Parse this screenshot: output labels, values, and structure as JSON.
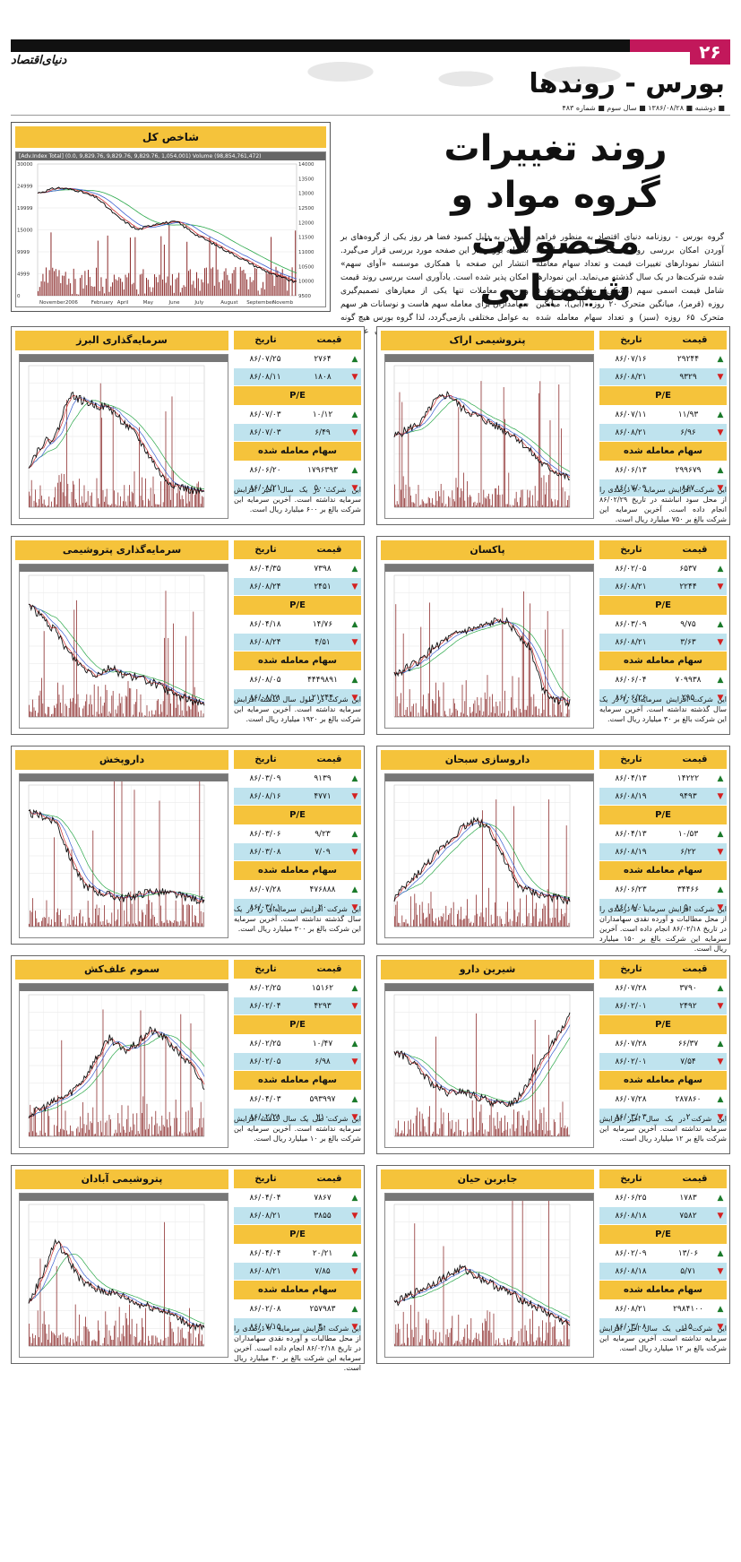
{
  "header": {
    "page_number": "۲۶",
    "logo": "دنیای‌اقتصاد",
    "section_title": "بورس - روندها",
    "dateline": "■ دوشنبه ■ ۱۳۸۶/۰۸/۲۸ ■ سال سوم ■ شماره ۴۸۳"
  },
  "article": {
    "headline_line1": "روند تغییرات",
    "headline_line2": "گروه مواد و محصولات شیمیایی",
    "intro_right": "گروه بورس - روزنامه دنیای اقتصاد به منظور فراهم آوردن امکان بررسی روند قیمت شرکت‌ها اقدام به انتشار نمودارهای تغییرات قیمت و تعداد سهام معامله شده شرکت‌ها در یک سال گذشته می‌نماید. این نمودارها شامل قیمت اسمی سهم (مشکی)، میانگین متحرک ۵ روزه (قرمز)، میانگین متحرک ۲۰ روزه (آبی)، میانگین متحرک ۶۵ روزه (سبز) و تعداد سهام معامله شده (قهوه‌ای) می‌باشد. سمت راست نمودار مقیاس قیمت و سمت چپ نمودار مقیاس تعداد سهام معامله شده می‌باشد.",
    "intro_left": "همچنین به دلیل کمبود فضا هر روز یکی از گروه‌های بر سامانه بورس در این صفحه مورد بررسی قرار می‌گیرد. انتشار این صفحه با همکاری موسسه «آوای سهم» امکان پذیر شده است. یادآوری است بررسی روند قیمت و حجم معاملات تنها یکی از معیارهای تصمیم‌گیری سهامداران برای معامله سهم هاست و نوسانات هر سهم به عوامل مختلفی بازمی‌گردد، لذا گروه بورس هیچ گونه مسوولیتی در برابر تصمیم‌گیری سهامداران عزیز بر اساس نمودارهای زیر ندارد."
  },
  "index_chart": {
    "title": "شاخص کل",
    "toolbar": "[Adv.Index Total] (0.0, 9,829.76, 9,829.76, 9,829.76, 1,054,001)   Volume (98,854,761,472)",
    "x_labels": [
      "November",
      "2006",
      "February",
      "April",
      "May",
      "June",
      "July",
      "August",
      "September",
      "Novemb"
    ],
    "y_left": [
      "30000",
      "24999",
      "19999",
      "15000",
      "9999",
      "4999",
      "0"
    ],
    "y_right": [
      "14000",
      "13500",
      "13000",
      "12500",
      "12000",
      "11500",
      "11000",
      "10500",
      "10000",
      "9500"
    ]
  },
  "labels": {
    "price": "قیمت",
    "date": "تاریخ",
    "pe": "P/E",
    "shares": "سهام معامله شده"
  },
  "cards": [
    {
      "id": "petro-arak",
      "title": "پتروشیمی اراک",
      "rows": [
        [
          "۲۹۲۴۴",
          "۸۶/۰۷/۱۶",
          "up"
        ],
        [
          "۹۳۲۹",
          "۸۶/۰۸/۲۱",
          "dn"
        ],
        [
          "۱۱/۹۳",
          "۸۶/۰۷/۱۱",
          "up"
        ],
        [
          "۶/۹۶",
          "۸۶/۰۸/۲۱",
          "dn"
        ],
        [
          "۲۹۹۶۷۹",
          "۸۶/۰۶/۱۳",
          "up"
        ],
        [
          "۸۶۷",
          "۸۶/۰۷/۰۹",
          "dn"
        ]
      ],
      "note": "این شرکت افزایش سرمایه ۳۰ درصدی را از محل سود انباشته در تاریخ ۸۶/۰۲/۲۹ انجام داده است. آخرین سرمایه این شرکت بالغ بر ۷۵۰ میلیارد ریال است."
    },
    {
      "id": "alborz-invest",
      "title": "سرمایه‌گذاری البرز",
      "rows": [
        [
          "۲۷۶۴",
          "۸۶/۰۷/۲۵",
          "up"
        ],
        [
          "۱۸۰۸",
          "۸۶/۰۸/۱۱",
          "dn"
        ],
        [
          "۱۰/۱۲",
          "۸۶/۰۷/۰۳",
          "up"
        ],
        [
          "۶/۴۹",
          "۸۶/۰۷/۰۳",
          "dn"
        ],
        [
          "۱۷۹۶۳۹۳",
          "۸۶/۰۶/۲۰",
          "up"
        ],
        [
          "۵۰۰۰",
          "۸۶/۰۸/۲۱",
          "dn"
        ]
      ],
      "note": "این شرکت در یک سال اخیر افزایش سرمایه نداشته است. آخرین سرمایه این شرکت بالغ بر ۶۰۰ میلیارد ریال است."
    },
    {
      "id": "paksan",
      "title": "پاکسان",
      "rows": [
        [
          "۶۵۳۷",
          "۸۶/۰۲/۰۵",
          "up"
        ],
        [
          "۲۲۴۴",
          "۸۶/۰۸/۲۱",
          "dn"
        ],
        [
          "۹/۷۵",
          "۸۶/۰۳/۰۹",
          "up"
        ],
        [
          "۳/۶۳",
          "۸۶/۰۸/۲۱",
          "dn"
        ],
        [
          "۷۰۹۹۳۸",
          "۸۶/۰۶/۰۴",
          "up"
        ],
        [
          "۲۹۵",
          "۸۶/۰۶/۲۶",
          "dn"
        ]
      ],
      "note": "این شرکت افزایش سرمایه‌ای را در یک سال گذشته نداشته است. آخرین سرمایه این شرکت بالغ بر ۳۰ میلیارد ریال است."
    },
    {
      "id": "petro-invest",
      "title": "سرمایه‌گذاری پتروشیمی",
      "rows": [
        [
          "۷۳۹۸",
          "۸۶/۰۴/۳۵",
          "up"
        ],
        [
          "۲۴۵۱",
          "۸۶/۰۸/۲۴",
          "dn"
        ],
        [
          "۱۴/۷۶",
          "۸۶/۰۴/۱۸",
          "up"
        ],
        [
          "۴/۵۱",
          "۸۶/۰۸/۲۴",
          "dn"
        ],
        [
          "۴۴۴۹۸۹۱",
          "۸۶/۰۸/۰۵",
          "up"
        ],
        [
          "۲۱۲۴۴",
          "۸۶/۰۸/۲۱",
          "dn"
        ]
      ],
      "note": "این شرکت در طول سال گذشته افزایش سرمایه نداشته است. آخرین سرمایه این شرکت بالغ بر ۱۹۲۰ میلیارد ریال است."
    },
    {
      "id": "sobhan",
      "title": "داروسازی سبحان",
      "rows": [
        [
          "۱۴۲۲۲",
          "۸۶/۰۴/۱۳",
          "up"
        ],
        [
          "۹۴۹۳",
          "۸۶/۰۸/۱۹",
          "dn"
        ],
        [
          "۱۰/۵۳",
          "۸۶/۰۴/۱۳",
          "up"
        ],
        [
          "۶/۲۲",
          "۸۶/۰۸/۱۹",
          "dn"
        ],
        [
          "۳۴۴۶۶",
          "۸۶/۰۶/۲۳",
          "up"
        ],
        [
          "۵۰",
          "۸۶/۰۸/۰۱",
          "dn"
        ]
      ],
      "note": "این شرکت افزایش سرمایه ۵۰ درصدی را از محل مطالبات و آورده نقدی سهامداران در تاریخ ۸۶/۰۲/۱۸ انجام داده است. آخرین سرمایه این شرکت بالغ بر ۱۵۰ میلیارد ریال است."
    },
    {
      "id": "darupakhsh",
      "title": "داروپخش",
      "rows": [
        [
          "۹۱۳۹",
          "۸۶/۰۳/۰۹",
          "up"
        ],
        [
          "۴۷۷۱",
          "۸۶/۰۸/۱۶",
          "dn"
        ],
        [
          "۹/۲۳",
          "۸۶/۰۳/۰۶",
          "up"
        ],
        [
          "۷/۰۹",
          "۸۶/۰۳/۰۸",
          "dn"
        ],
        [
          "۴۷۶۸۸۸",
          "۸۶/۰۷/۲۸",
          "up"
        ],
        [
          "۲۰",
          "۸۶/۰۳/۰۱",
          "dn"
        ]
      ],
      "note": "این شرکت افزایش سرمایه‌ای را در یک سال گذشته نداشته است. آخرین سرمایه این شرکت بالغ بر ۳۰۰ میلیارد ریال است."
    },
    {
      "id": "shirin-daru",
      "title": "شیرین دارو",
      "rows": [
        [
          "۳۷۹۰",
          "۸۶/۰۷/۲۸",
          "up"
        ],
        [
          "۲۴۹۲",
          "۸۶/۰۲/۰۱",
          "dn"
        ],
        [
          "۶۶/۳۷",
          "۸۶/۰۷/۲۸",
          "up"
        ],
        [
          "۷/۵۴",
          "۸۶/۰۲/۰۱",
          "dn"
        ],
        [
          "۲۸۷۸۶۰",
          "۸۶/۰۷/۲۸",
          "up"
        ],
        [
          "۲",
          "۸۶/۰۳/۰۳",
          "dn"
        ]
      ],
      "note": "این شرکت در یک سال اخیر افزایش سرمایه نداشته است. آخرین سرمایه این شرکت بالغ بر ۱۲ میلیارد ریال است."
    },
    {
      "id": "somum",
      "title": "سموم علف‌کش",
      "rows": [
        [
          "۱۵۱۶۲",
          "۸۶/۰۲/۲۵",
          "up"
        ],
        [
          "۴۲۹۳",
          "۸۶/۰۲/۰۴",
          "dn"
        ],
        [
          "۱۰/۴۷",
          "۸۶/۰۲/۲۵",
          "up"
        ],
        [
          "۶/۹۸",
          "۸۶/۰۲/۰۵",
          "dn"
        ],
        [
          "۵۹۳۹۹۷",
          "۸۶/۰۴/۰۳",
          "up"
        ],
        [
          "۲۱۰",
          "۸۶/۰۲/۲۱",
          "dn"
        ]
      ],
      "note": "این شرکت طی یک سال گذشته افزایش سرمایه نداشته است. آخرین سرمایه این شرکت بالغ بر ۱۰ میلیارد ریال است."
    },
    {
      "id": "jaberebne-hayyan",
      "title": "جابربن حیان",
      "rows": [
        [
          "۱۷۸۳",
          "۸۶/۰۶/۲۵",
          "up"
        ],
        [
          "۷۵۸۲",
          "۸۶/۰۸/۱۸",
          "dn"
        ],
        [
          "۱۳/۰۶",
          "۸۶/۰۲/۰۹",
          "up"
        ],
        [
          "۵/۷۱",
          "۸۶/۰۸/۱۸",
          "dn"
        ],
        [
          "۲۹۸۴۱۰۰",
          "۸۶/۰۸/۲۱",
          "up"
        ],
        [
          "۱۵",
          "۸۶/۰۳/۰۸",
          "dn"
        ]
      ],
      "note": "این شرکت طی یک سال اخیر افزایش سرمایه نداشته است. آخرین سرمایه این شرکت بالغ بر ۱۲ میلیارد ریال است."
    },
    {
      "id": "petro-abadan",
      "title": "پتروشیمی آبادان",
      "rows": [
        [
          "۷۸۶۷",
          "۸۶/۰۴/۰۴",
          "up"
        ],
        [
          "۳۸۵۵",
          "۸۶/۰۸/۲۱",
          "dn"
        ],
        [
          "۲۰/۲۱",
          "۸۶/۰۴/۰۴",
          "up"
        ],
        [
          "۷/۸۵",
          "۸۶/۰۸/۲۱",
          "dn"
        ],
        [
          "۲۵۷۹۸۳",
          "۸۶/۰۲/۰۸",
          "up"
        ],
        [
          "۴۰",
          "۸۶/۰۷/۱۵",
          "dn"
        ]
      ],
      "note": "این شرکت افزایش سرمایه ۲۰ درصدی را از محل مطالبات و آورده نقدی سهامداران در تاریخ ۸۶/۰۲/۱۸ انجام داده است. آخرین سرمایه این شرکت بالغ بر ۳۰ میلیارد ریال است."
    }
  ]
}
